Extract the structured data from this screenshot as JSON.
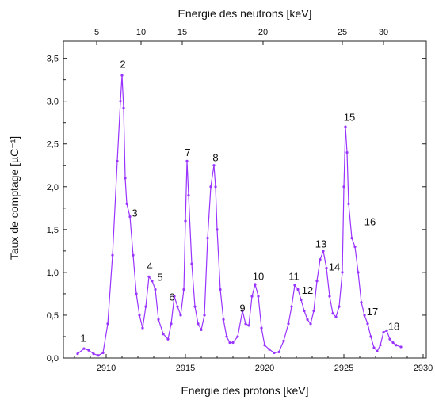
{
  "chart_data": {
    "type": "line",
    "xlabel": "Energie des protons [keV]",
    "ylabel": "Taux de comptage [µC⁻¹]",
    "x2label": "Energie des neutrons [keV]",
    "xlim": [
      2907.3,
      2930.2
    ],
    "ylim": [
      0.0,
      3.7
    ],
    "x_ticks": [
      2910,
      2915,
      2920,
      2925,
      2930
    ],
    "y_ticks": [
      0.0,
      0.5,
      1.0,
      1.5,
      2.0,
      2.5,
      3.0,
      3.5
    ],
    "y_tick_labels": [
      "0,0",
      "0,5",
      "1,0",
      "1,5",
      "2,0",
      "2,5",
      "3,0",
      "3,5"
    ],
    "x2_ticks": [
      {
        "label": "5",
        "x": 2909.4
      },
      {
        "label": "10",
        "x": 2912.2
      },
      {
        "label": "15",
        "x": 2914.8
      },
      {
        "label": "20",
        "x": 2919.9
      },
      {
        "label": "25",
        "x": 2924.9
      },
      {
        "label": "30",
        "x": 2927.5
      }
    ],
    "grid": false,
    "line_color": "#9933ff",
    "series": [
      {
        "x": [
          2908.2,
          2908.6,
          2908.9,
          2909.2,
          2909.5,
          2909.8,
          2910.1,
          2910.4,
          2910.7,
          2910.9,
          2911.0,
          2911.1,
          2911.2,
          2911.3,
          2911.5,
          2911.7,
          2911.9,
          2912.1,
          2912.3,
          2912.5,
          2912.7,
          2912.9,
          2913.1,
          2913.3,
          2913.6,
          2913.9,
          2914.1,
          2914.3,
          2914.5,
          2914.7,
          2914.9,
          2915.0,
          2915.1,
          2915.2,
          2915.4,
          2915.6,
          2915.8,
          2916.0,
          2916.2,
          2916.4,
          2916.6,
          2916.8,
          2916.9,
          2917.0,
          2917.2,
          2917.4,
          2917.6,
          2917.8,
          2918.0,
          2918.3,
          2918.6,
          2918.8,
          2919.0,
          2919.2,
          2919.4,
          2919.6,
          2919.8,
          2920.0,
          2920.3,
          2920.6,
          2920.9,
          2921.2,
          2921.5,
          2921.7,
          2921.9,
          2922.1,
          2922.3,
          2922.5,
          2922.7,
          2922.9,
          2923.1,
          2923.3,
          2923.5,
          2923.7,
          2923.9,
          2924.1,
          2924.3,
          2924.5,
          2924.7,
          2924.9,
          2925.0,
          2925.1,
          2925.2,
          2925.3,
          2925.5,
          2925.7,
          2925.9,
          2926.1,
          2926.3,
          2926.5,
          2926.7,
          2926.9,
          2927.1,
          2927.3,
          2927.5,
          2927.7,
          2927.9,
          2928.1,
          2928.3,
          2928.6
        ],
        "y": [
          0.05,
          0.11,
          0.09,
          0.05,
          0.03,
          0.06,
          0.4,
          1.2,
          2.3,
          3.0,
          3.3,
          2.92,
          2.1,
          1.8,
          1.65,
          1.2,
          0.75,
          0.5,
          0.35,
          0.6,
          0.95,
          0.9,
          0.8,
          0.45,
          0.28,
          0.22,
          0.4,
          0.72,
          0.6,
          0.5,
          0.8,
          1.6,
          2.3,
          1.9,
          1.1,
          0.6,
          0.4,
          0.33,
          0.5,
          1.4,
          2.0,
          2.25,
          2.0,
          1.5,
          0.8,
          0.45,
          0.25,
          0.18,
          0.18,
          0.25,
          0.55,
          0.4,
          0.38,
          0.72,
          0.86,
          0.72,
          0.35,
          0.15,
          0.1,
          0.06,
          0.07,
          0.2,
          0.4,
          0.6,
          0.85,
          0.8,
          0.68,
          0.55,
          0.45,
          0.4,
          0.55,
          0.9,
          1.15,
          1.25,
          1.05,
          0.72,
          0.52,
          0.48,
          0.6,
          1.0,
          2.0,
          2.7,
          2.4,
          1.8,
          1.4,
          1.3,
          1.0,
          0.65,
          0.5,
          0.4,
          0.25,
          0.12,
          0.08,
          0.15,
          0.3,
          0.32,
          0.22,
          0.18,
          0.15,
          0.13
        ]
      }
    ],
    "annotations": [
      {
        "text": "1",
        "x": 2908.55,
        "y": 0.19
      },
      {
        "text": "2",
        "x": 2911.05,
        "y": 3.39
      },
      {
        "text": "3",
        "x": 2911.8,
        "y": 1.65
      },
      {
        "text": "4",
        "x": 2912.75,
        "y": 1.03
      },
      {
        "text": "5",
        "x": 2913.4,
        "y": 0.9
      },
      {
        "text": "6",
        "x": 2914.15,
        "y": 0.67
      },
      {
        "text": "7",
        "x": 2915.15,
        "y": 2.36
      },
      {
        "text": "8",
        "x": 2916.9,
        "y": 2.3
      },
      {
        "text": "9",
        "x": 2918.6,
        "y": 0.54
      },
      {
        "text": "10",
        "x": 2919.6,
        "y": 0.91
      },
      {
        "text": "11",
        "x": 2921.85,
        "y": 0.91
      },
      {
        "text": "12",
        "x": 2922.7,
        "y": 0.75
      },
      {
        "text": "13",
        "x": 2923.55,
        "y": 1.29
      },
      {
        "text": "14",
        "x": 2924.4,
        "y": 1.02
      },
      {
        "text": "15",
        "x": 2925.35,
        "y": 2.77
      },
      {
        "text": "16",
        "x": 2926.65,
        "y": 1.55
      },
      {
        "text": "17",
        "x": 2926.8,
        "y": 0.5
      },
      {
        "text": "18",
        "x": 2928.15,
        "y": 0.33
      }
    ]
  }
}
